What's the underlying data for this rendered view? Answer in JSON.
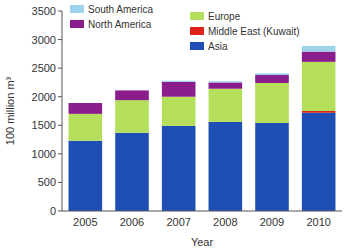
{
  "chart_data": {
    "type": "bar",
    "stacked": true,
    "x_label": "Year",
    "y_label": "100 million m³",
    "categories": [
      "2005",
      "2006",
      "2007",
      "2008",
      "2009",
      "2010"
    ],
    "series": [
      {
        "name": "Asia",
        "color": "#1f4fb4",
        "values": [
          1230,
          1370,
          1490,
          1560,
          1540,
          1720
        ]
      },
      {
        "name": "Middle East (Kuwait)",
        "color": "#e0201b",
        "values": [
          0,
          0,
          0,
          0,
          0,
          30
        ]
      },
      {
        "name": "Europe",
        "color": "#b5df5a",
        "values": [
          470,
          570,
          510,
          580,
          700,
          860
        ]
      },
      {
        "name": "North America",
        "color": "#8a1c8c",
        "values": [
          190,
          170,
          260,
          110,
          140,
          180
        ]
      },
      {
        "name": "South America",
        "color": "#9dd4ec",
        "values": [
          0,
          0,
          20,
          20,
          30,
          100
        ]
      }
    ],
    "ylim": [
      0,
      3500
    ],
    "yticks": [
      0,
      500,
      1000,
      1500,
      2000,
      2500,
      3000,
      3500
    ],
    "grid": false,
    "legend": "top-left"
  }
}
